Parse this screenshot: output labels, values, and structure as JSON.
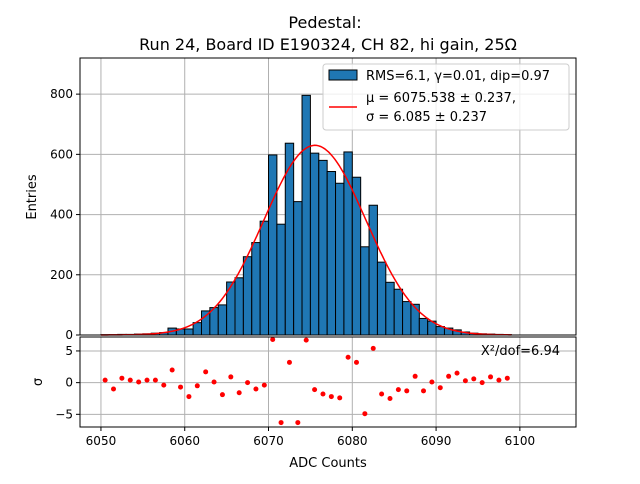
{
  "chart_data": {
    "type": "bar",
    "title": "Pedestal:",
    "subtitle": "Run 24, Board ID E190324, CH 82, hi gain, 25Ω",
    "xlabel": "ADC Counts",
    "ylabel": "Entries",
    "residual_ylabel": "σ",
    "xlim": [
      6047.5,
      6106.7
    ],
    "ylim": [
      0,
      920
    ],
    "residual_ylim": [
      -7,
      7.2
    ],
    "grid": true,
    "legend_placement": "top-right",
    "xticks": [
      "6050",
      "6060",
      "6070",
      "6080",
      "6090",
      "6100"
    ],
    "xtick_values": [
      6050,
      6060,
      6070,
      6080,
      6090,
      6100
    ],
    "yticks": [
      "0",
      "200",
      "400",
      "600",
      "800"
    ],
    "ytick_values": [
      0,
      200,
      400,
      600,
      800
    ],
    "residual_yticks": [
      "−5",
      "0",
      "5"
    ],
    "residual_ytick_values": [
      -5,
      0,
      5
    ],
    "histogram": {
      "name": "RMS=6.1, γ=0.01, dip=0.97",
      "color": "#1f77b4",
      "bin_start": 6050,
      "bin_width": 1,
      "values": [
        1,
        1,
        2,
        2,
        3,
        4,
        6,
        8,
        23,
        20,
        20,
        41,
        80,
        91,
        100,
        176,
        190,
        260,
        307,
        378,
        598,
        368,
        637,
        443,
        796,
        604,
        580,
        543,
        504,
        608,
        524,
        293,
        431,
        242,
        175,
        152,
        111,
        102,
        55,
        46,
        28,
        23,
        17,
        10,
        6,
        4,
        3,
        2,
        1
      ]
    },
    "fit": {
      "name_line1": "μ = 6075.538 ± 0.237,",
      "name_line2": "σ = 6.085 ± 0.237",
      "color": "#ff0000",
      "mu": 6075.538,
      "sigma": 6.085,
      "amplitude": 630,
      "range": [
        6050,
        6099
      ]
    },
    "residuals": {
      "color": "#ff0000",
      "x_start": 6050.5,
      "values": [
        0.4,
        -1.0,
        0.7,
        0.4,
        0.1,
        0.4,
        0.4,
        -0.4,
        2.0,
        -0.7,
        -2.2,
        -0.5,
        1.7,
        0.1,
        -1.9,
        0.9,
        -1.6,
        0.0,
        -1.0,
        -0.4,
        6.8,
        -6.3,
        3.2,
        -6.3,
        6.7,
        -1.1,
        -1.8,
        -2.2,
        -2.4,
        4.0,
        3.2,
        -4.9,
        5.4,
        -1.8,
        -2.5,
        -1.1,
        -1.3,
        1.0,
        -1.3,
        0.1,
        -0.8,
        1.0,
        1.5,
        0.3,
        0.6,
        0.0,
        0.9,
        0.4,
        0.7
      ]
    },
    "annotation": "X²/dof=6.94"
  }
}
